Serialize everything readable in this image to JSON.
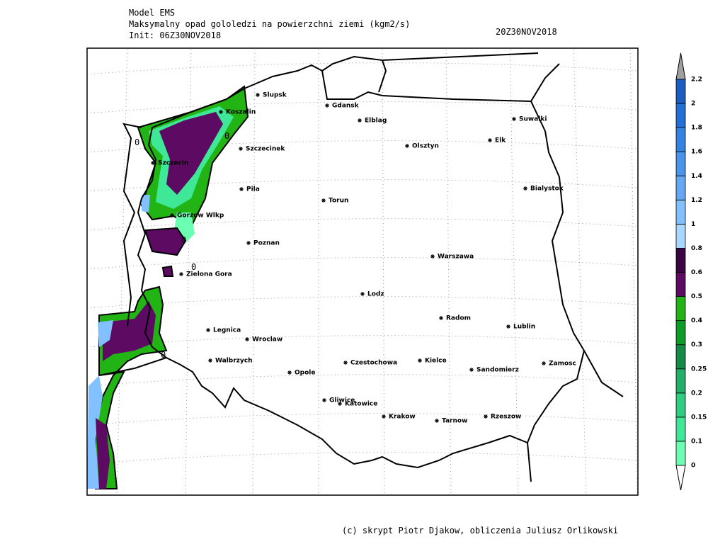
{
  "header": {
    "model": "Model EMS",
    "title": "Maksymalny opad gololedzi na powierzchni ziemi (kgm2/s)",
    "init": "Init: 06Z30NOV2018",
    "valid": "20Z30NOV2018"
  },
  "map": {
    "cities": [
      "Slupsk",
      "Gdansk",
      "Koszalin",
      "Elblag",
      "Suwalki",
      "Szczecinek",
      "Olsztyn",
      "Elk",
      "Szczecin",
      "Pila",
      "Torun",
      "Bialystok",
      "Gorzow Wlkp",
      "Poznan",
      "Warszawa",
      "Zielona Gora",
      "Lodz",
      "Radom",
      "Lublin",
      "Legnica",
      "Wroclaw",
      "Walbrzych",
      "Opole",
      "Czestochowa",
      "Kielce",
      "Sandomierz",
      "Zamosc",
      "Gliwice",
      "Katowice",
      "Krakow",
      "Tarnow",
      "Rzeszow"
    ],
    "contour_label": "0"
  },
  "colorbar": {
    "levels": [
      0,
      0.1,
      0.15,
      0.2,
      0.25,
      0.3,
      0.4,
      0.5,
      0.6,
      0.8,
      1,
      1.2,
      1.4,
      1.6,
      1.8,
      2,
      2.2
    ],
    "colors": [
      "#6cffb4",
      "#3fe896",
      "#2fcd80",
      "#22b068",
      "#158a48",
      "#0c9c28",
      "#22b414",
      "#5c0a62",
      "#3a0542",
      "#a8d8ff",
      "#82c0ff",
      "#64a8f4",
      "#4a94ec",
      "#3482e2",
      "#2270d6",
      "#1a5ec4"
    ]
  },
  "footer": "(c) skrypt Piotr Djakow, obliczenia Juliusz Orlikowski"
}
